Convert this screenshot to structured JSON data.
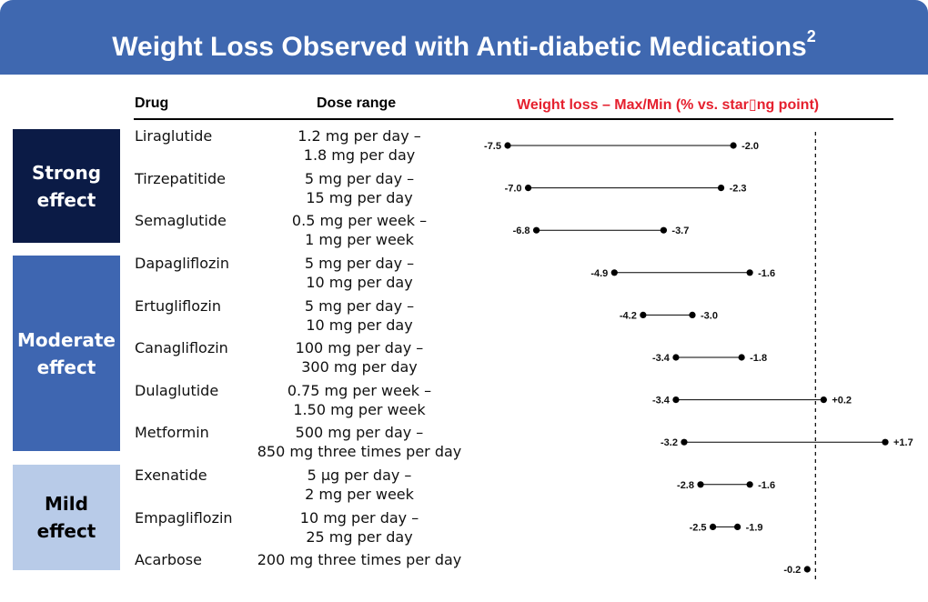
{
  "title": "Weight Loss Observed with Anti-diabetic Medications",
  "title_sup": "2",
  "headers": {
    "drug": "Drug",
    "dose": "Dose range",
    "weight_loss": "Weight loss  – Max/Min (% vs. star▯ng point)"
  },
  "categories": [
    {
      "line1": "Strong",
      "line2": "effect"
    },
    {
      "line1": "Moderate",
      "line2": "effect"
    },
    {
      "line1": "Mild",
      "line2": "effect"
    }
  ],
  "colors": {
    "banner": "#3f68b0",
    "strong": "#0b1b46",
    "moderate": "#3e66b1",
    "mild": "#b8cbe8",
    "header_accent": "#e5202e"
  },
  "rows": [
    {
      "drug": "Liraglutide",
      "dose1": "1.2 mg per day –",
      "dose2": "1.8 mg per day"
    },
    {
      "drug": "Tirzepatitide",
      "dose1": "5 mg per day –",
      "dose2": "15 mg per day"
    },
    {
      "drug": "Semaglutide",
      "dose1": "0.5 mg per week –",
      "dose2": "1 mg per week"
    },
    {
      "drug": "Dapagliflozin",
      "dose1": "5 mg per day –",
      "dose2": "10 mg per day"
    },
    {
      "drug": "Ertugliflozin",
      "dose1": "5 mg per day –",
      "dose2": "10 mg per day"
    },
    {
      "drug": "Canagliflozin",
      "dose1": "100 mg per day –",
      "dose2": "300 mg per day"
    },
    {
      "drug": "Dulaglutide",
      "dose1": "0.75 mg per week –",
      "dose2": "1.50 mg per week"
    },
    {
      "drug": "Metformin",
      "dose1": "500 mg per day –",
      "dose2": "850 mg three times per day"
    },
    {
      "drug": "Exenatide",
      "dose1": "5 µg per day –",
      "dose2": "2 mg per week"
    },
    {
      "drug": "Empagliflozin",
      "dose1": "10 mg per day –",
      "dose2": "25 mg per day"
    },
    {
      "drug": "Acarbose",
      "dose1": "200 mg three times per day",
      "dose2": ""
    }
  ],
  "chart_data": {
    "type": "dumbbell",
    "title": "Weight loss – Max/Min (% vs. starting point)",
    "reference_line": 0,
    "categories": [
      "Liraglutide",
      "Tirzepatitide",
      "Semaglutide",
      "Dapagliflozin",
      "Ertugliflozin",
      "Canagliflozin",
      "Dulaglutide",
      "Metformin",
      "Exenatide",
      "Empagliflozin",
      "Acarbose"
    ],
    "series": [
      {
        "name": "Max",
        "values": [
          -7.5,
          -7.0,
          -6.8,
          -4.9,
          -4.2,
          -3.4,
          -3.4,
          -3.2,
          -2.8,
          -2.5,
          -0.2
        ],
        "labels": [
          "-7.5",
          "-7.0",
          "-6.8",
          "-4.9",
          "-4.2",
          "-3.4",
          "-3.4",
          "-3.2",
          "-2.8",
          "-2.5",
          "-0.2"
        ]
      },
      {
        "name": "Min",
        "values": [
          -2.0,
          -2.3,
          -3.7,
          -1.6,
          -3.0,
          -1.8,
          0.2,
          1.7,
          -1.6,
          -1.9,
          null
        ],
        "labels": [
          "-2.0",
          "-2.3",
          "-3.7",
          "-1.6",
          "-3.0",
          "-1.8",
          "+0.2",
          "+1.7",
          "-1.6",
          "-1.9",
          ""
        ]
      }
    ],
    "xlim": [
      -7.5,
      1.7
    ]
  }
}
